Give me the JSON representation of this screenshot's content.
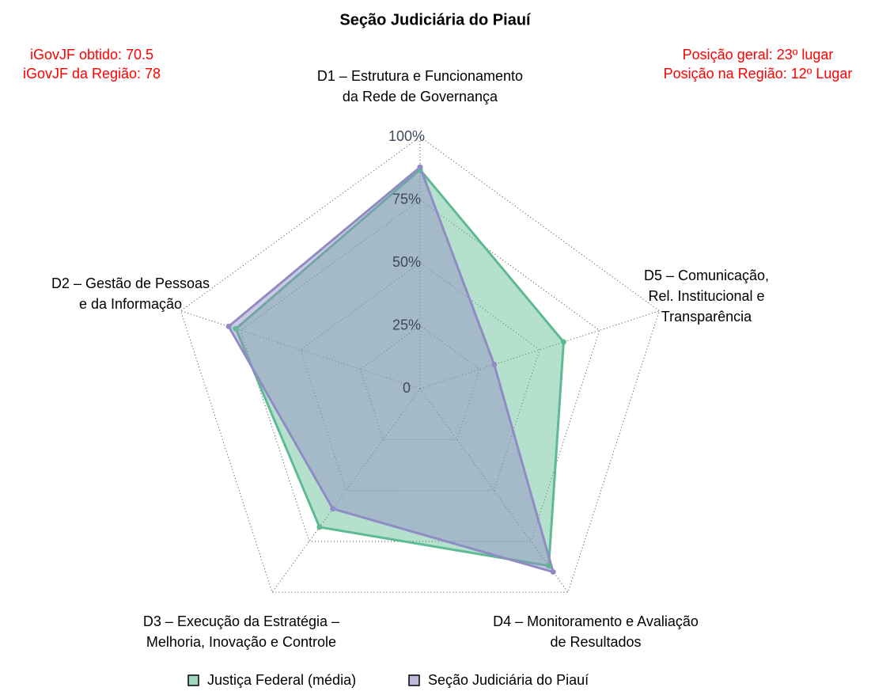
{
  "chart_data": {
    "type": "radar",
    "title": "Seção Judiciária do Piauí",
    "annotations_left": [
      "iGovJF obtido: 70.5",
      "iGovJF da Região: 78"
    ],
    "annotations_right": [
      "Posição geral: 23º lugar",
      "Posição na Região: 12º Lugar"
    ],
    "categories": [
      [
        "D1 – Estrutura e Funcionamento",
        "da Rede de Governança"
      ],
      [
        "D2 – Gestão de Pessoas",
        "e da Informação"
      ],
      [
        "D3 – Execução da Estratégia –",
        "Melhoria, Inovação e Controle"
      ],
      [
        "D4 – Monitoramento e Avaliação",
        "de Resultados"
      ],
      [
        "D5 – Comunicação,",
        "Rel. Institucional e",
        "Transparência"
      ]
    ],
    "rlim": [
      0,
      100
    ],
    "rticks": [
      0,
      {
        "value": 25,
        "label": "25%"
      },
      {
        "value": 50,
        "label": "50%"
      },
      {
        "value": 75,
        "label": "75%"
      },
      {
        "value": 100,
        "label": "100%"
      }
    ],
    "series": [
      {
        "name": "Justiça Federal (média)",
        "color": "#5dba93",
        "values": [
          87,
          77,
          68,
          87,
          60
        ]
      },
      {
        "name": "Seção Judiciária do Piauí",
        "color": "#8f8cc4",
        "values": [
          88,
          80,
          59,
          90,
          31
        ]
      }
    ],
    "legend": "bottom"
  }
}
